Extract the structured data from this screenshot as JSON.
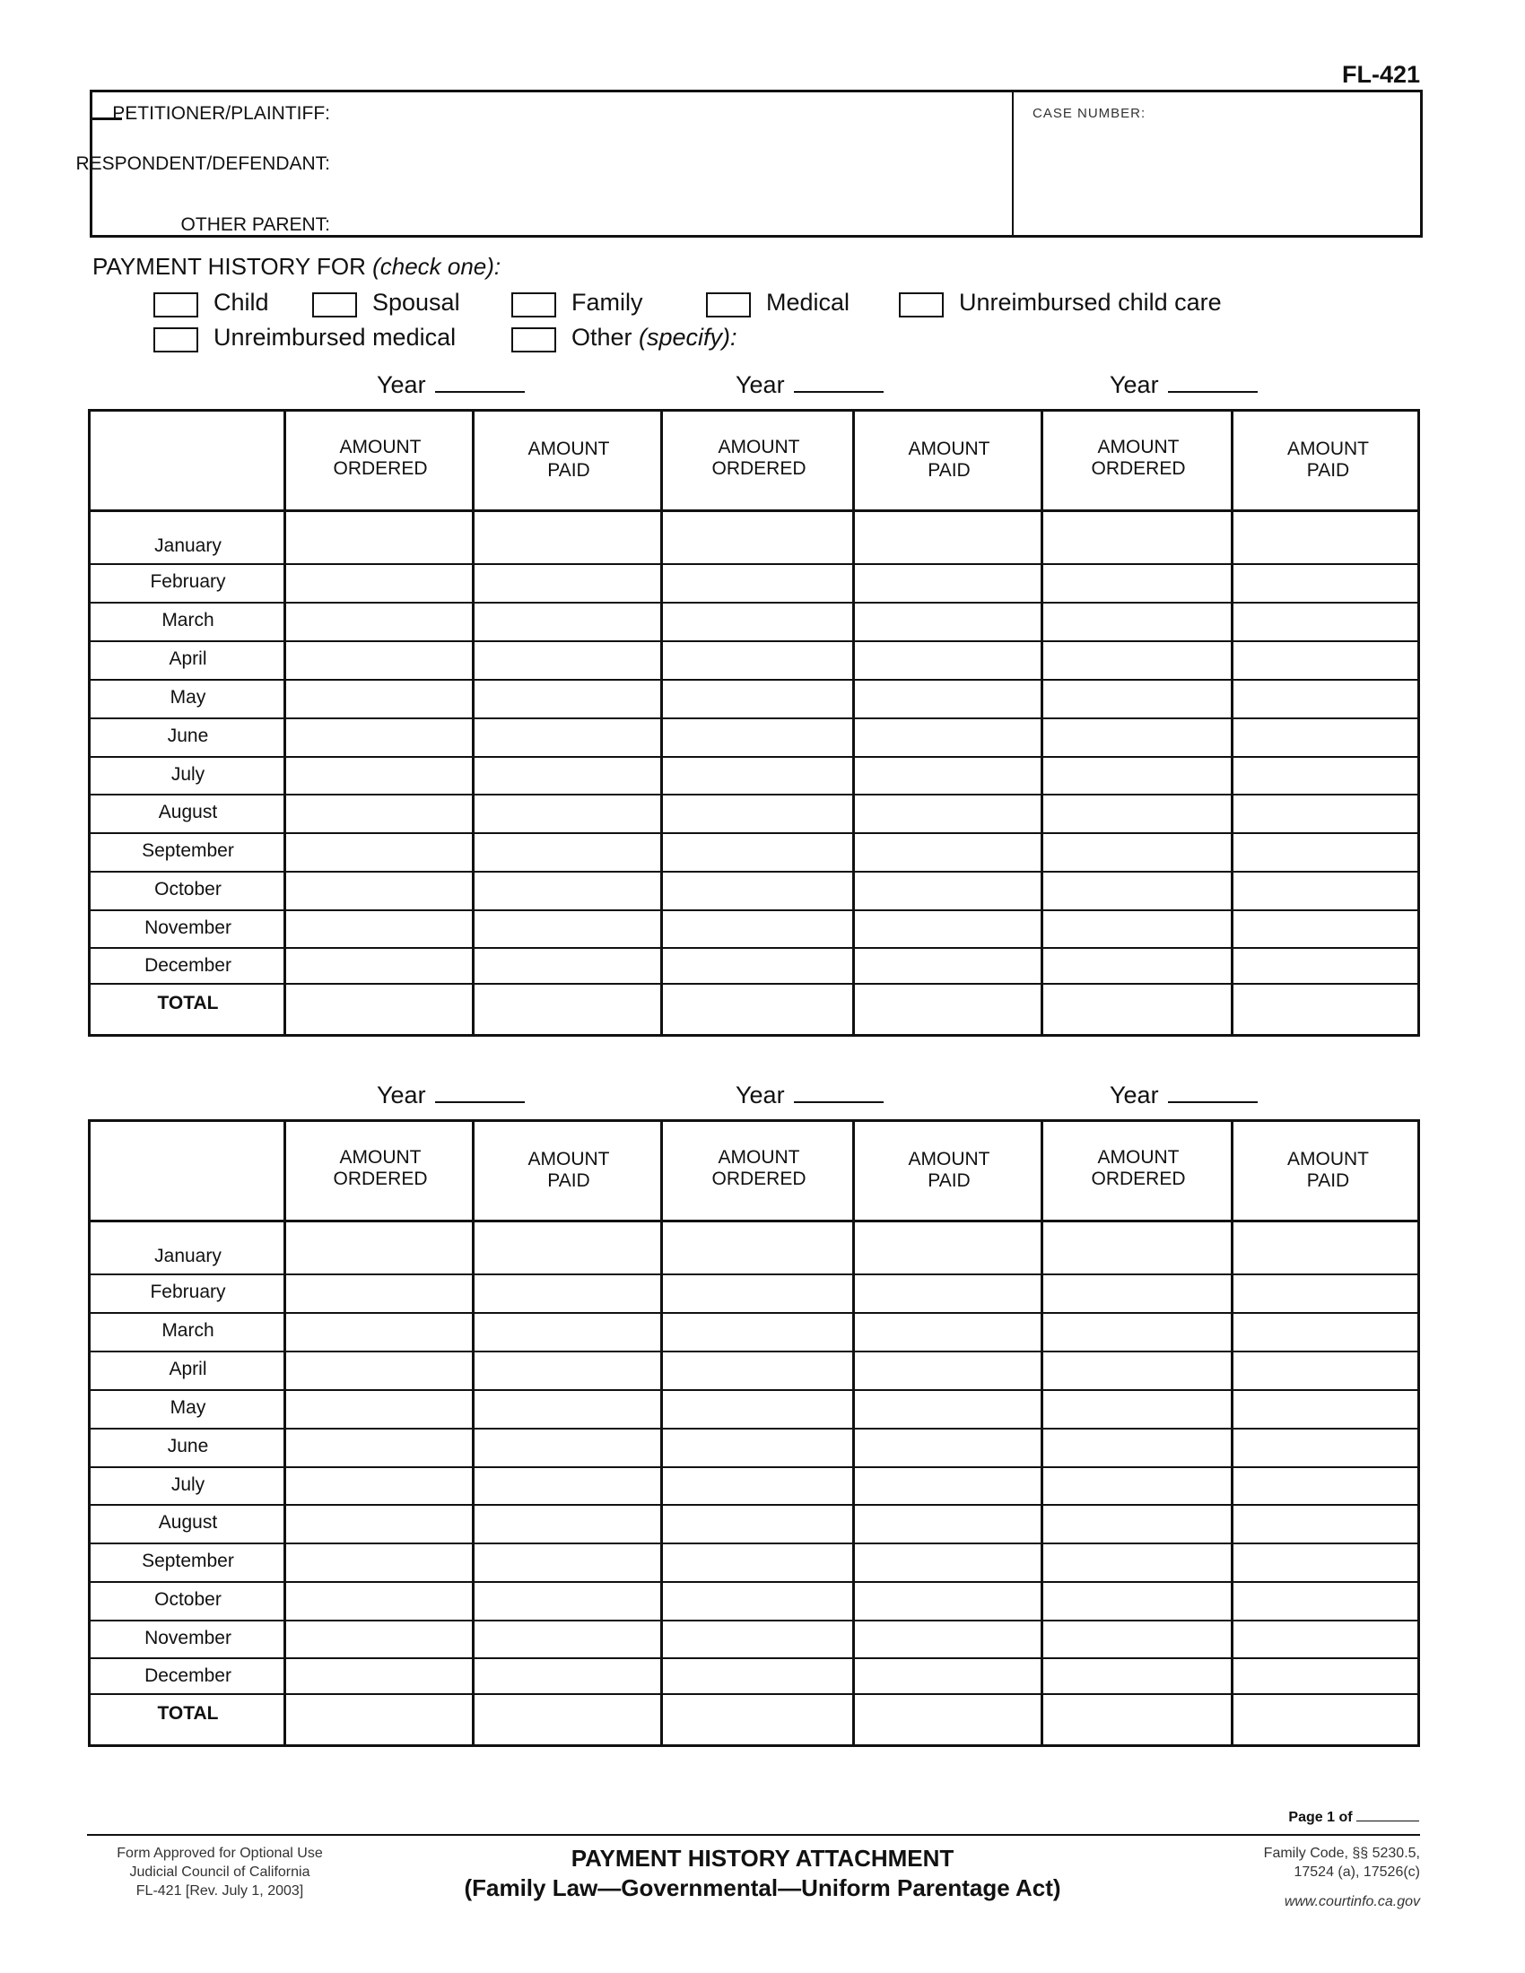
{
  "form_number": "FL-421",
  "caption": {
    "petitioner_label": "PETITIONER/PLAINTIFF:",
    "respondent_label": "RESPONDENT/DEFENDANT:",
    "other_parent_label": "OTHER PARENT:",
    "case_number_label": "CASE NUMBER:"
  },
  "payment_history": {
    "label": "PAYMENT HISTORY FOR ",
    "label_italic": "(check one):",
    "options": [
      {
        "label": "Child",
        "checked": false
      },
      {
        "label": "Spousal",
        "checked": false
      },
      {
        "label": "Family",
        "checked": false
      },
      {
        "label": "Medical",
        "checked": false
      },
      {
        "label": "Unreimbursed child care",
        "checked": false
      },
      {
        "label": "Unreimbursed medical",
        "checked": false
      },
      {
        "label": "Other ",
        "label_italic": "(specify):",
        "checked": false
      }
    ]
  },
  "tables": [
    {
      "year_labels": [
        "Year",
        "Year",
        "Year"
      ]
    },
    {
      "year_labels": [
        "Year",
        "Year",
        "Year"
      ]
    }
  ],
  "column_headers": [
    "AMOUNT\nORDERED",
    "AMOUNT\nPAID",
    "AMOUNT\nORDERED",
    "AMOUNT\nPAID",
    "AMOUNT\nORDERED",
    "AMOUNT\nPAID"
  ],
  "months": [
    "January",
    "February",
    "March",
    "April",
    "May",
    "June",
    "July",
    "August",
    "September",
    "October",
    "November",
    "December"
  ],
  "total_label": "TOTAL",
  "footer": {
    "page": "Page 1 of",
    "left": [
      "Form Approved for Optional Use",
      "Judicial Council of California",
      "FL-421 [Rev. July 1, 2003]"
    ],
    "title": "PAYMENT HISTORY ATTACHMENT",
    "subtitle": "(Family Law—Governmental—Uniform Parentage Act)",
    "right": [
      "Family Code, §§  5230.5,",
      "17524 (a), 17526(c)"
    ],
    "url": "www.courtinfo.ca.gov"
  }
}
